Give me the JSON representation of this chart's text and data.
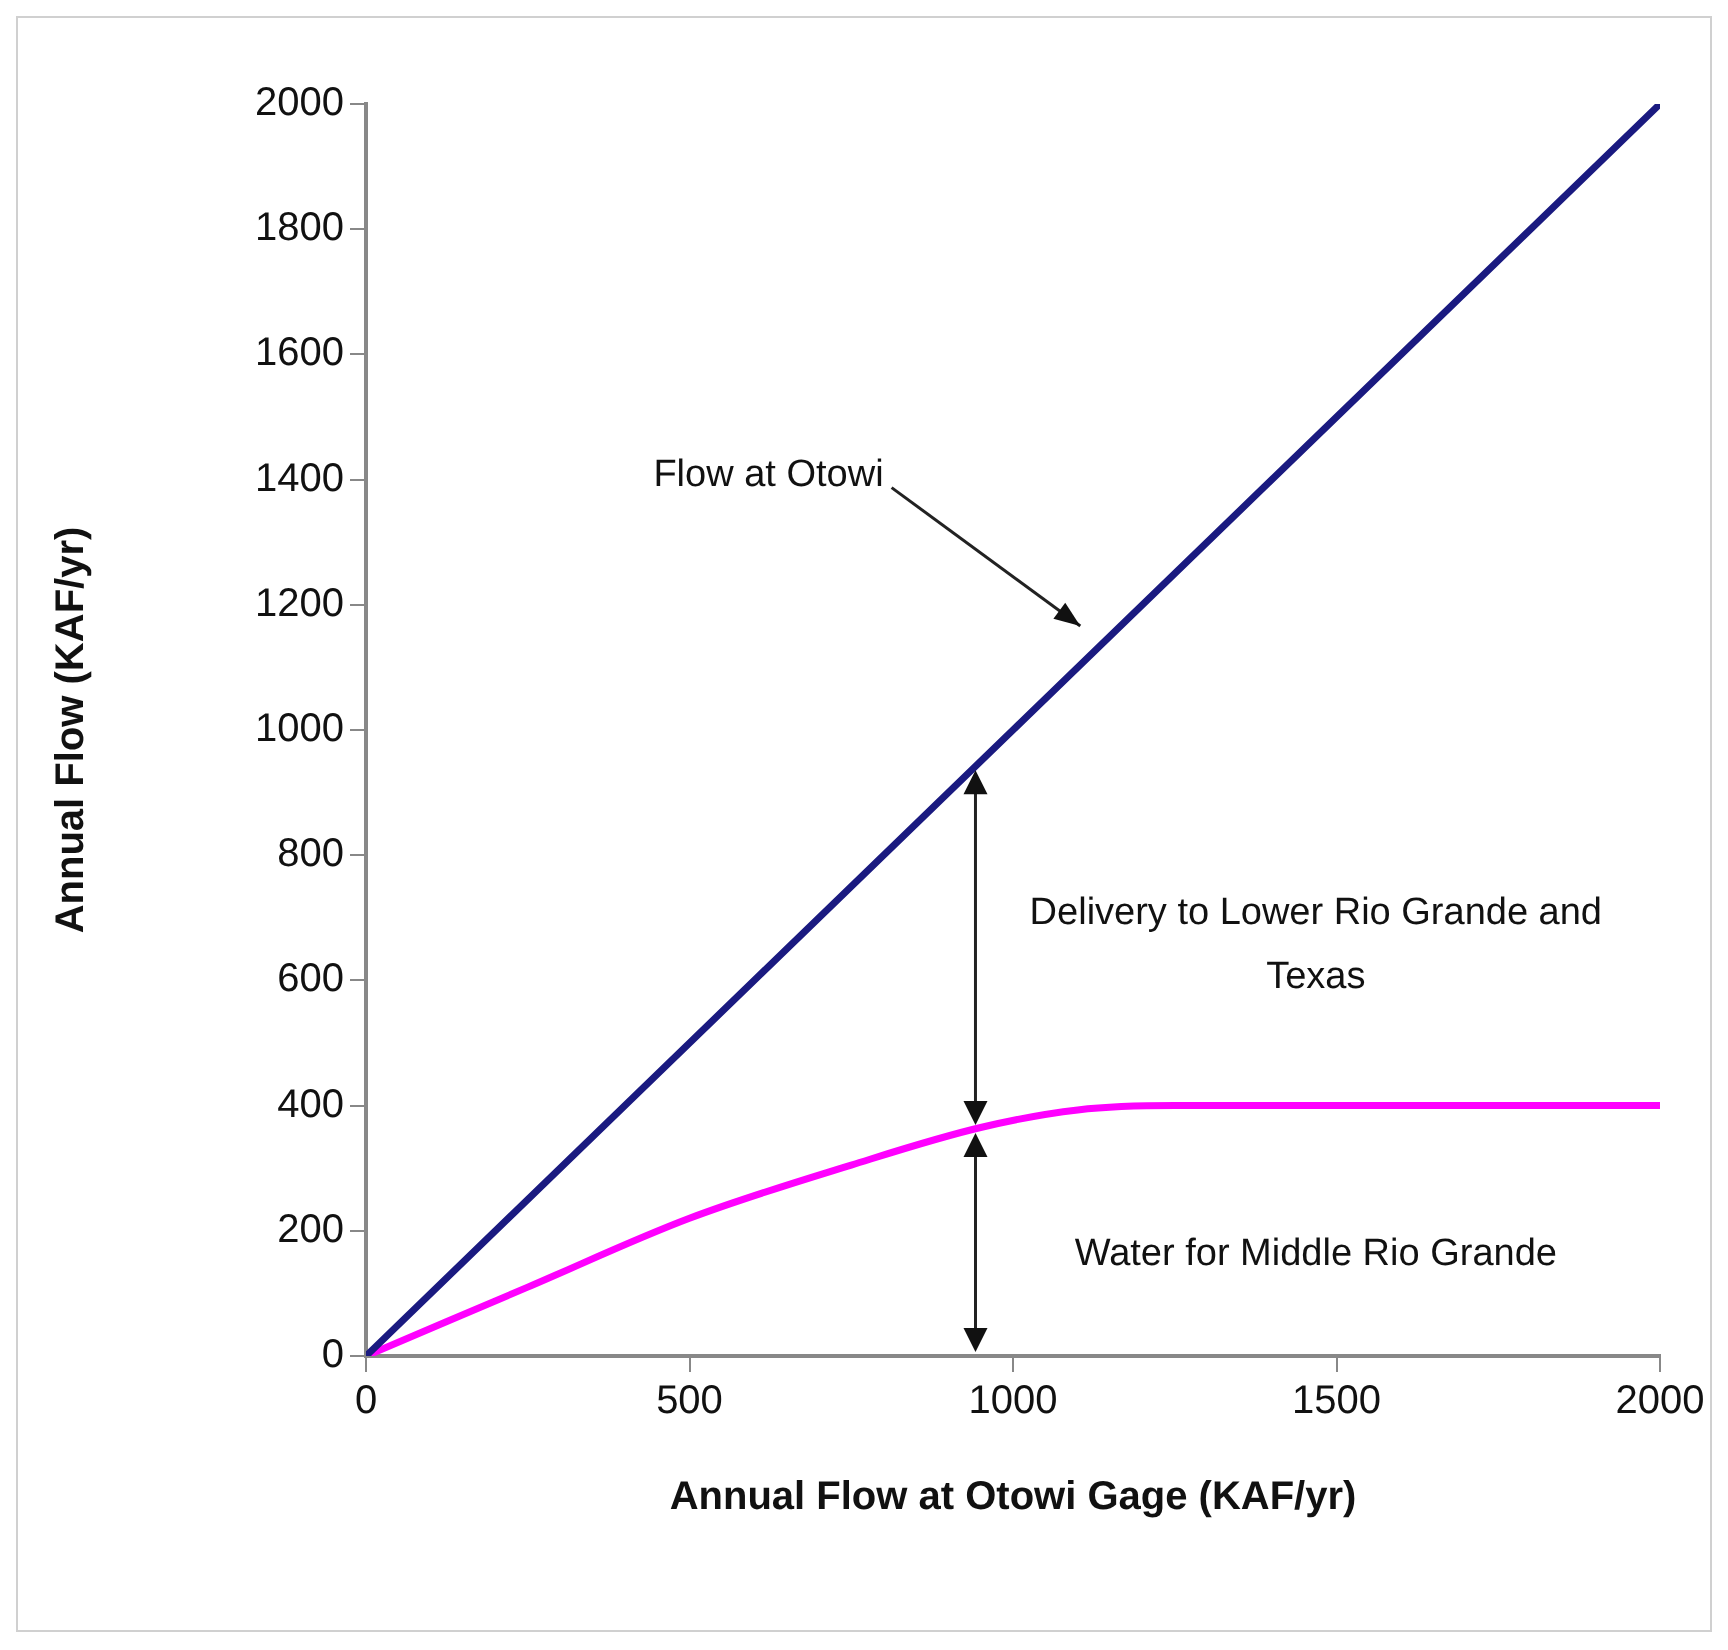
{
  "chart_data": {
    "type": "line",
    "xlabel": "Annual Flow at Otowi Gage (KAF/yr)",
    "ylabel": "Annual Flow (KAF/yr)",
    "xlim": [
      0,
      2000
    ],
    "xticks": [
      0,
      500,
      1000,
      1500,
      2000
    ],
    "ylim": [
      0,
      2000
    ],
    "yticks": [
      0,
      200,
      400,
      600,
      800,
      1000,
      1200,
      1400,
      1600,
      1800,
      2000
    ],
    "grid": false,
    "legend": false,
    "marker": "none",
    "line_style": "solid",
    "series": [
      {
        "color": "#1a1a80",
        "x": [
          0,
          2000
        ],
        "values": [
          0,
          2000
        ]
      },
      {
        "color": "#ff00ff",
        "x": [
          0,
          250,
          500,
          750,
          950,
          1100,
          1250,
          1500,
          2000
        ],
        "values": [
          0,
          110,
          220,
          305,
          365,
          393,
          400,
          400,
          400
        ]
      }
    ],
    "annotations": [
      "Flow at Otowi",
      "Delivery to Lower Rio Grande and Texas",
      "Water for Middle Rio Grande"
    ]
  }
}
